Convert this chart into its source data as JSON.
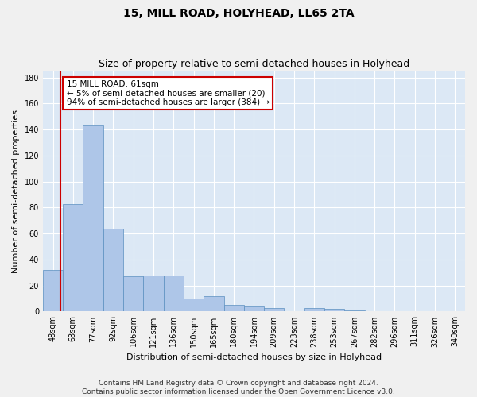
{
  "title": "15, MILL ROAD, HOLYHEAD, LL65 2TA",
  "subtitle": "Size of property relative to semi-detached houses in Holyhead",
  "xlabel": "Distribution of semi-detached houses by size in Holyhead",
  "ylabel": "Number of semi-detached properties",
  "footer_line1": "Contains HM Land Registry data © Crown copyright and database right 2024.",
  "footer_line2": "Contains public sector information licensed under the Open Government Licence v3.0.",
  "categories": [
    "48sqm",
    "63sqm",
    "77sqm",
    "92sqm",
    "106sqm",
    "121sqm",
    "136sqm",
    "150sqm",
    "165sqm",
    "180sqm",
    "194sqm",
    "209sqm",
    "223sqm",
    "238sqm",
    "253sqm",
    "267sqm",
    "282sqm",
    "296sqm",
    "311sqm",
    "326sqm",
    "340sqm"
  ],
  "values": [
    32,
    83,
    143,
    64,
    27,
    28,
    28,
    10,
    12,
    5,
    4,
    3,
    0,
    3,
    2,
    1,
    0,
    0,
    0,
    0,
    0
  ],
  "bar_color": "#aec6e8",
  "bar_edge_color": "#5a8fc0",
  "property_label": "15 MILL ROAD: 61sqm",
  "pct_smaller": 5,
  "n_smaller": 20,
  "pct_larger": 94,
  "n_larger": 384,
  "vline_color": "#cc0000",
  "annotation_box_edge_color": "#cc0000",
  "ylim": [
    0,
    185
  ],
  "yticks": [
    0,
    20,
    40,
    60,
    80,
    100,
    120,
    140,
    160,
    180
  ],
  "bg_color": "#dce8f5",
  "grid_color": "#ffffff",
  "fig_bg_color": "#f0f0f0",
  "title_fontsize": 10,
  "subtitle_fontsize": 9,
  "axis_label_fontsize": 8,
  "tick_fontsize": 7,
  "footer_fontsize": 6.5,
  "ann_fontsize": 7.5
}
